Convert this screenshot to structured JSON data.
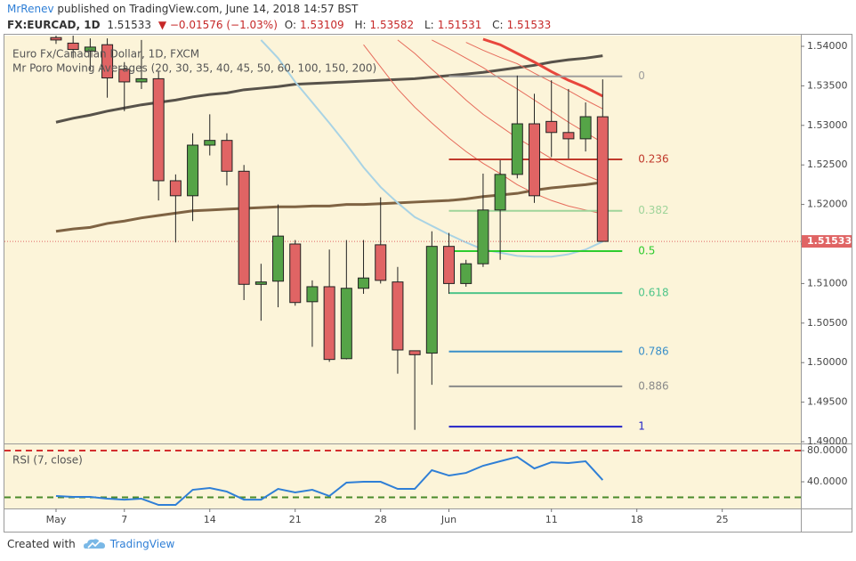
{
  "header": {
    "author": "MrRenev",
    "published": "published on TradingView.com, June 14, 2018 14:57 BST",
    "symbol": "FX:EURCAD, 1D",
    "last": "1.51533",
    "change": "▼ −0.01576 (−1.03%)",
    "ohlc": [
      {
        "label": "O:",
        "value": "1.53109"
      },
      {
        "label": "H:",
        "value": "1.53582"
      },
      {
        "label": "L:",
        "value": "1.51531"
      },
      {
        "label": "C:",
        "value": "1.51533"
      }
    ]
  },
  "chart_data": [
    {
      "type": "candlestick",
      "title": "Euro Fx/Canadian Dollar, 1D, FXCM",
      "subtitle": "Mr Poro Moving Averages (20, 30, 35, 40, 45, 50, 60, 100, 150, 200)",
      "x": [
        0,
        1,
        2,
        3,
        4,
        5,
        6,
        7,
        8,
        9,
        10,
        11,
        12,
        13,
        14,
        15,
        16,
        17,
        18,
        19,
        20,
        21,
        22,
        23,
        24,
        25,
        26,
        27,
        28,
        29,
        30,
        31,
        32
      ],
      "open": [
        1.5411,
        1.5404,
        1.5394,
        1.5402,
        1.5371,
        1.5355,
        1.5359,
        1.523,
        1.5211,
        1.5275,
        1.5281,
        1.5242,
        1.5099,
        1.5103,
        1.515,
        1.5077,
        1.5096,
        1.5005,
        1.5094,
        1.5149,
        1.5102,
        1.5015,
        1.5012,
        1.5147,
        1.51,
        1.5125,
        1.5193,
        1.5238,
        1.5302,
        1.5305,
        1.5291,
        1.5283,
        1.53109
      ],
      "high": [
        1.542,
        1.5415,
        1.541,
        1.541,
        1.538,
        1.5408,
        1.5368,
        1.5238,
        1.529,
        1.5314,
        1.529,
        1.525,
        1.5125,
        1.52,
        1.5155,
        1.5104,
        1.5143,
        1.5155,
        1.5155,
        1.5209,
        1.5121,
        1.5015,
        1.5166,
        1.5164,
        1.513,
        1.5239,
        1.5256,
        1.5363,
        1.534,
        1.5357,
        1.5346,
        1.5329,
        1.53582
      ],
      "low": [
        1.5403,
        1.5385,
        1.537,
        1.5335,
        1.5318,
        1.5346,
        1.5205,
        1.5152,
        1.5179,
        1.5262,
        1.5224,
        1.5079,
        1.5053,
        1.507,
        1.5072,
        1.502,
        1.5001,
        1.5004,
        1.5087,
        1.51,
        1.4986,
        1.4915,
        1.4972,
        1.5087,
        1.5096,
        1.5121,
        1.513,
        1.5233,
        1.5202,
        1.526,
        1.5258,
        1.5267,
        1.51531
      ],
      "close": [
        1.5408,
        1.5396,
        1.5399,
        1.536,
        1.5355,
        1.5359,
        1.523,
        1.5211,
        1.5275,
        1.5281,
        1.5242,
        1.5099,
        1.5102,
        1.516,
        1.5076,
        1.5096,
        1.5004,
        1.5094,
        1.5107,
        1.5104,
        1.5016,
        1.501,
        1.5147,
        1.51,
        1.5125,
        1.5193,
        1.5238,
        1.5302,
        1.5211,
        1.5291,
        1.5283,
        1.5311,
        1.51533
      ],
      "up_color": "#55a447",
      "down_color": "#e06464",
      "border_color": "#222222",
      "last_price_color": "#e06464",
      "xlim": [
        -3.02,
        43.6
      ],
      "xticks": [
        {
          "value": 0,
          "label": "May"
        },
        {
          "value": 4,
          "label": "7"
        },
        {
          "value": 9,
          "label": "14"
        },
        {
          "value": 14,
          "label": "21"
        },
        {
          "value": 19,
          "label": "28"
        },
        {
          "value": 23,
          "label": "Jun"
        },
        {
          "value": 29,
          "label": "11"
        },
        {
          "value": 34,
          "label": "18"
        },
        {
          "value": 39,
          "label": "25"
        }
      ],
      "ylim": [
        1.48989,
        1.54135
      ],
      "yticks": [
        {
          "value": 1.49,
          "label": "1.49000"
        },
        {
          "value": 1.495,
          "label": "1.49500"
        },
        {
          "value": 1.5,
          "label": "1.50000"
        },
        {
          "value": 1.505,
          "label": "1.50500"
        },
        {
          "value": 1.51,
          "label": "1.51000"
        },
        {
          "value": 1.515,
          "label": "1.51500"
        },
        {
          "value": 1.52,
          "label": "1.52000"
        },
        {
          "value": 1.525,
          "label": "1.52500"
        },
        {
          "value": 1.53,
          "label": "1.53000"
        },
        {
          "value": 1.535,
          "label": "1.53500"
        },
        {
          "value": 1.54,
          "label": "1.54000"
        }
      ],
      "moving_averages": [
        {
          "color": "#7f6343",
          "width": 3,
          "values": [
            1.5166,
            1.5169,
            1.5171,
            1.5176,
            1.5179,
            1.5183,
            1.5186,
            1.5189,
            1.5192,
            1.5193,
            1.5194,
            1.5195,
            1.5196,
            1.5197,
            1.5197,
            1.5198,
            1.5198,
            1.52,
            1.52,
            1.5201,
            1.5202,
            1.5203,
            1.5204,
            1.5205,
            1.5207,
            1.521,
            1.5212,
            1.5214,
            1.5218,
            1.5221,
            1.5223,
            1.5225,
            1.5228
          ]
        },
        {
          "color": "#57524a",
          "width": 3,
          "values": [
            1.5304,
            1.5309,
            1.5313,
            1.5318,
            1.5322,
            1.5326,
            1.5329,
            1.5332,
            1.5336,
            1.5339,
            1.5341,
            1.5345,
            1.5347,
            1.5349,
            1.5352,
            1.5353,
            1.5354,
            1.5355,
            1.5356,
            1.5357,
            1.5358,
            1.5359,
            1.5361,
            1.5363,
            1.5365,
            1.5367,
            1.537,
            1.5373,
            1.5376,
            1.538,
            1.5383,
            1.5385,
            1.5388
          ]
        },
        {
          "color": "#a9d3e4",
          "width": 2,
          "values": [
            null,
            null,
            null,
            null,
            null,
            null,
            null,
            null,
            null,
            null,
            null,
            null,
            1.5408,
            1.5385,
            1.5355,
            1.5329,
            1.5303,
            1.5276,
            1.5247,
            1.5222,
            1.5202,
            1.5184,
            1.5173,
            1.5162,
            1.5152,
            1.5143,
            1.5139,
            1.5135,
            1.5134,
            1.5134,
            1.5137,
            1.5143,
            1.5153
          ]
        },
        {
          "color": "#e66b5b",
          "width": 1,
          "values": [
            null,
            null,
            null,
            null,
            null,
            null,
            null,
            null,
            null,
            null,
            null,
            null,
            null,
            null,
            null,
            null,
            null,
            null,
            1.5402,
            1.5374,
            1.5346,
            1.5323,
            1.5303,
            1.5284,
            1.5267,
            1.5252,
            1.5239,
            1.5225,
            1.5214,
            1.5205,
            1.5198,
            1.5193,
            1.5188
          ]
        },
        {
          "color": "#e66b5b",
          "width": 1,
          "values": [
            null,
            null,
            null,
            null,
            null,
            null,
            null,
            null,
            null,
            null,
            null,
            null,
            null,
            null,
            null,
            null,
            null,
            null,
            null,
            null,
            1.5408,
            1.5391,
            1.5371,
            1.5352,
            1.5332,
            1.5314,
            1.5299,
            1.5284,
            1.5271,
            1.5258,
            1.5247,
            1.5237,
            1.5228
          ]
        },
        {
          "color": "#e66b5b",
          "width": 1,
          "values": [
            null,
            null,
            null,
            null,
            null,
            null,
            null,
            null,
            null,
            null,
            null,
            null,
            null,
            null,
            null,
            null,
            null,
            null,
            null,
            null,
            null,
            null,
            1.5408,
            1.5397,
            1.5385,
            1.5373,
            1.5359,
            1.5346,
            1.5332,
            1.5318,
            1.5304,
            1.5291,
            1.5278
          ]
        },
        {
          "color": "#e66b5b",
          "width": 1,
          "values": [
            null,
            null,
            null,
            null,
            null,
            null,
            null,
            null,
            null,
            null,
            null,
            null,
            null,
            null,
            null,
            null,
            null,
            null,
            null,
            null,
            null,
            null,
            null,
            null,
            1.5405,
            1.5395,
            1.5386,
            1.5378,
            1.5366,
            1.5355,
            1.5344,
            1.5332,
            1.5321
          ]
        },
        {
          "color": "#e8463c",
          "width": 3,
          "values": [
            null,
            null,
            null,
            null,
            null,
            null,
            null,
            null,
            null,
            null,
            null,
            null,
            null,
            null,
            null,
            null,
            null,
            null,
            null,
            null,
            null,
            null,
            null,
            null,
            null,
            1.5409,
            1.5402,
            1.5391,
            1.538,
            1.5368,
            1.5357,
            1.5348,
            1.5337
          ]
        }
      ],
      "fibonacci": [
        {
          "level": 0,
          "price": 1.5362,
          "color": "#9e9e9e"
        },
        {
          "level": 0.236,
          "price": 1.5257,
          "color": "#c0392b"
        },
        {
          "level": 0.382,
          "price": 1.5192,
          "color": "#9fd49a"
        },
        {
          "level": 0.5,
          "price": 1.5141,
          "color": "#2ecc2e"
        },
        {
          "level": 0.618,
          "price": 1.5088,
          "color": "#4fc58a"
        },
        {
          "level": 0.786,
          "price": 1.5014,
          "color": "#3a8fc9"
        },
        {
          "level": 0.886,
          "price": 1.497,
          "color": "#8a8a8a"
        },
        {
          "level": 1,
          "price": 1.4919,
          "color": "#2323c8"
        }
      ]
    },
    {
      "type": "line",
      "title": "RSI (7, close)",
      "color": "#2f7fd6",
      "values": [
        21.7,
        20.6,
        20.6,
        18.3,
        17.1,
        18.3,
        10.3,
        10.3,
        29.7,
        32.0,
        27.4,
        17.1,
        17.1,
        30.9,
        26.3,
        29.7,
        21.7,
        38.9,
        40.0,
        40.0,
        30.9,
        30.9,
        54.9,
        48.0,
        51.4,
        60.6,
        66.3,
        72.0,
        57.1,
        65.1,
        64.0,
        66.3,
        42.3
      ],
      "ylim": [
        6.9,
        86.9
      ],
      "yticks": [
        {
          "value": 80,
          "label": "80.0000"
        },
        {
          "value": 40,
          "label": "40.0000"
        }
      ],
      "levels": [
        {
          "value": 80,
          "color": "#d32f2f"
        },
        {
          "value": 20,
          "color": "#4a8a2a"
        }
      ]
    }
  ],
  "footer": {
    "text": "Created with",
    "brand": "TradingView"
  }
}
